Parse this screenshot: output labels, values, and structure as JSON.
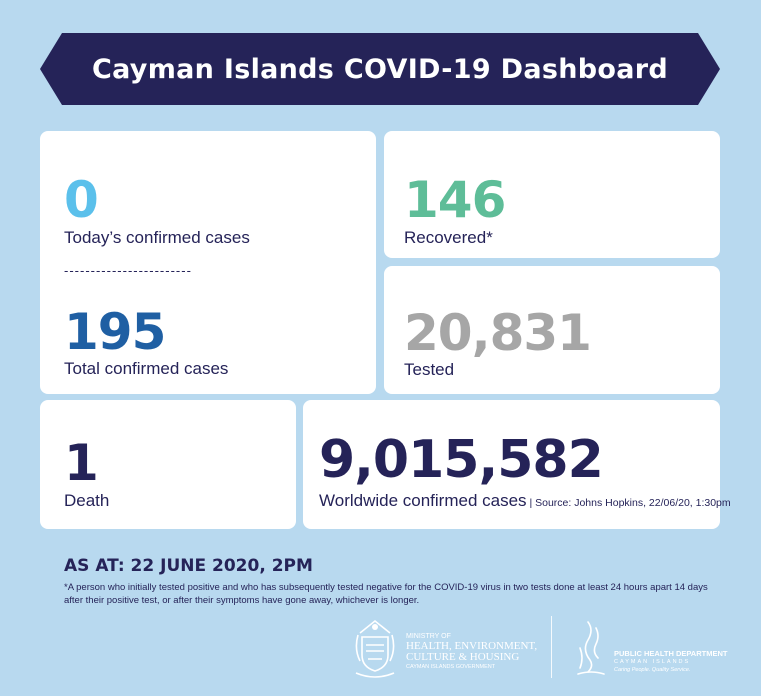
{
  "header": {
    "title": "Cayman Islands COVID-19 Dashboard"
  },
  "stats": {
    "today": {
      "value": "0",
      "label": "Today’s confirmed cases",
      "color": "#5bc0eb"
    },
    "divider": "------------------------",
    "total": {
      "value": "195",
      "label": "Total confirmed cases",
      "color": "#1f5fa3"
    },
    "recovered": {
      "value": "146",
      "label": "Recovered*",
      "color": "#5ebd98"
    },
    "tested": {
      "value": "20,831",
      "label": "Tested",
      "color": "#a6a6a6"
    },
    "death": {
      "value": "1",
      "label": "Death",
      "color": "#252358"
    },
    "worldwide": {
      "value": "9,015,582",
      "label": "Worldwide confirmed cases",
      "source": " | Source: Johns Hopkins, 22/06/20, 1:30pm",
      "color": "#252358"
    }
  },
  "as_at": "AS AT: 22 JUNE 2020, 2PM",
  "footnote": "*A person who initially tested positive and who has subsequently tested negative for the COVID-19 virus in two tests done at least 24 hours apart 14 days after their positive test, or after their symptoms have gone away, whichever is longer.",
  "logos": {
    "ministry": {
      "line1": "MINISTRY OF",
      "line2": "HEALTH, ENVIRONMENT,",
      "line3": "CULTURE & HOUSING",
      "line4": "CAYMAN ISLANDS GOVERNMENT"
    },
    "phd": {
      "line1": "PUBLIC HEALTH DEPARTMENT",
      "line2": "CAYMAN ISLANDS",
      "line3": "Caring People. Quality Service."
    }
  },
  "colors": {
    "background": "#b8d9ef",
    "navy": "#252358"
  }
}
